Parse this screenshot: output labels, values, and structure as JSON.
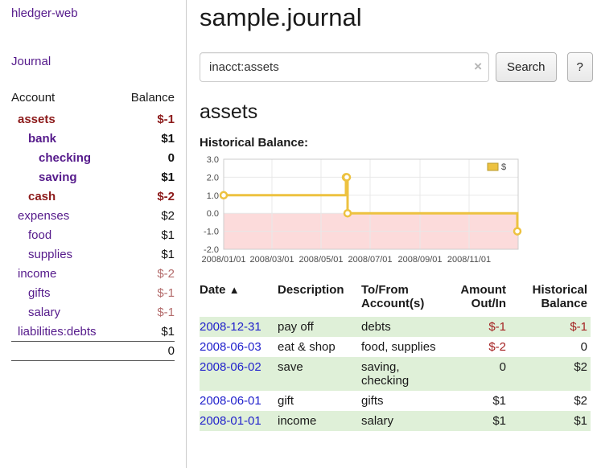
{
  "app": {
    "title": "hledger-web"
  },
  "colors": {
    "link_purple": "#551a8b",
    "link_blue": "#2222cc",
    "negative_strong": "#8c1a1a",
    "negative_soft": "#b36b6b",
    "negative": "#a42222",
    "row_stripe_green": "#dff0d8"
  },
  "sidebar": {
    "journal_link": "Journal",
    "table": {
      "account_header": "Account",
      "balance_header": "Balance",
      "rows": [
        {
          "name": "assets",
          "balance": "$-1"
        },
        {
          "name": "bank",
          "balance": "$1"
        },
        {
          "name": "checking",
          "balance": "0"
        },
        {
          "name": "saving",
          "balance": "$1"
        },
        {
          "name": "cash",
          "balance": "$-2"
        },
        {
          "name": "expenses",
          "balance": "$2"
        },
        {
          "name": "food",
          "balance": "$1"
        },
        {
          "name": "supplies",
          "balance": "$1"
        },
        {
          "name": "income",
          "balance": "$-2"
        },
        {
          "name": "gifts",
          "balance": "$-1"
        },
        {
          "name": "salary",
          "balance": "$-1"
        },
        {
          "name": "liabilities:debts",
          "balance": "$1"
        }
      ],
      "total": "0"
    }
  },
  "main": {
    "title": "sample.journal",
    "search": {
      "value": "inacct:assets",
      "clear_label": "×",
      "button_label": "Search",
      "help_label": "?"
    },
    "account_heading": "assets",
    "chart_title": "Historical Balance:"
  },
  "chart_data": {
    "type": "line",
    "interpolation": "step-after",
    "title": "Historical Balance",
    "series": [
      {
        "name": "$",
        "points": [
          [
            "2008-01-01",
            1
          ],
          [
            "2008-06-01",
            2
          ],
          [
            "2008-06-02",
            2
          ],
          [
            "2008-06-03",
            0
          ],
          [
            "2008-12-31",
            -1
          ]
        ]
      }
    ],
    "x_range": [
      "2008-01-01",
      "2009-01-01"
    ],
    "ylim": [
      -2,
      3
    ],
    "y_ticks": [
      "3.0",
      "2.0",
      "1.0",
      "0.0",
      "-1.0",
      "-2.0"
    ],
    "x_ticks": [
      "2008/01/01",
      "2008/03/01",
      "2008/05/01",
      "2008/07/01",
      "2008/09/01",
      "2008/11/01"
    ],
    "legend": "$",
    "legend_position": "top-right",
    "grid": true,
    "colors": {
      "line": "#edc240",
      "negative_region": "#fcdbdb",
      "grid": "#e8e8e8",
      "border": "#cccccc"
    }
  },
  "register": {
    "headers": {
      "date": "Date",
      "sort_icon": "▲",
      "description": "Description",
      "accounts": "To/From\nAccount(s)",
      "amount": "Amount\nOut/In",
      "balance": "Historical\nBalance"
    },
    "rows": [
      {
        "date": "2008-12-31",
        "description": "pay off",
        "accounts": "debts",
        "amount": "$-1",
        "balance": "$-1"
      },
      {
        "date": "2008-06-03",
        "description": "eat & shop",
        "accounts": "food, supplies",
        "amount": "$-2",
        "balance": "0"
      },
      {
        "date": "2008-06-02",
        "description": "save",
        "accounts": "saving, checking",
        "amount": "0",
        "balance": "$2"
      },
      {
        "date": "2008-06-01",
        "description": "gift",
        "accounts": "gifts",
        "amount": "$1",
        "balance": "$2"
      },
      {
        "date": "2008-01-01",
        "description": "income",
        "accounts": "salary",
        "amount": "$1",
        "balance": "$1"
      }
    ]
  }
}
